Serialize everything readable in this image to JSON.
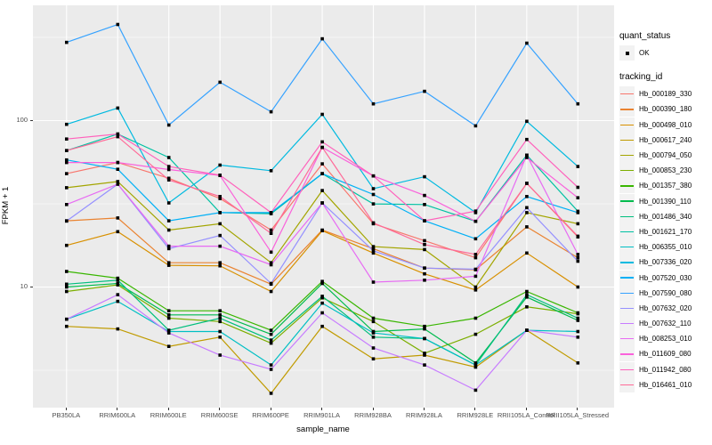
{
  "figure": {
    "y_axis": {
      "title": "FPKM + 1",
      "tick_labels": [
        "100",
        "10"
      ]
    },
    "x_axis": {
      "title": "sample_name"
    },
    "legend": {
      "quant_status_title": "quant_status",
      "quant_status_item": "OK",
      "tracking_id_title": "tracking_id"
    },
    "colors": {
      "panel_bg": "#EBEBEB",
      "grid": "#FFFFFF",
      "axis_text": "#4D4D4D",
      "point": "#000000",
      "legend_key_bg": "#F2F2F2"
    }
  },
  "chart_data": {
    "type": "line",
    "title": "",
    "xlabel": "sample_name",
    "ylabel": "FPKM + 1",
    "y_scale": "log10",
    "ylim": [
      2,
      420
    ],
    "y_major_ticks": [
      10,
      100
    ],
    "y_minor_ticks": [
      3.162,
      31.62,
      316.2
    ],
    "grid": "on",
    "legend_position": "right",
    "quant_status": "OK",
    "categories": [
      "PB350LA",
      "RRIM600LA",
      "RRIM600LE",
      "RRIM600SE",
      "RRIM600PE",
      "RRIM901LA",
      "RRIM928BA",
      "RRIM928LA",
      "RRIM928LE",
      "RRII105LA_Control",
      "RRII105LA_Stressed"
    ],
    "series": [
      {
        "name": "Hb_000189_330",
        "color": "#F8766D",
        "values": [
          48,
          56,
          45,
          34,
          22,
          55,
          24,
          19,
          15,
          42,
          20
        ]
      },
      {
        "name": "Hb_000390_180",
        "color": "#EA8331",
        "values": [
          25,
          26,
          14,
          14,
          10.4,
          22,
          17,
          13,
          12.7,
          23,
          15
        ]
      },
      {
        "name": "Hb_000498_010",
        "color": "#D89000",
        "values": [
          17.8,
          21.5,
          13.5,
          13.4,
          9.4,
          21.8,
          16,
          12,
          9.6,
          16,
          10
        ]
      },
      {
        "name": "Hb_000617_240",
        "color": "#C09B00",
        "values": [
          5.8,
          5.6,
          4.4,
          5,
          2.3,
          5.8,
          3.7,
          3.9,
          3.3,
          5.5,
          3.5
        ]
      },
      {
        "name": "Hb_000794_050",
        "color": "#A3A500",
        "values": [
          39.5,
          43,
          22,
          24,
          14,
          38,
          17.5,
          16.8,
          10,
          28,
          24
        ]
      },
      {
        "name": "Hb_000853_230",
        "color": "#7CAE00",
        "values": [
          9.4,
          10.3,
          6.5,
          6.2,
          4.6,
          8.6,
          6.2,
          4,
          5.2,
          7.6,
          6.9
        ]
      },
      {
        "name": "Hb_001357_380",
        "color": "#39B600",
        "values": [
          12.4,
          11.3,
          7.2,
          7.2,
          5.5,
          10.8,
          6.5,
          5.8,
          6.5,
          9.4,
          7
        ]
      },
      {
        "name": "Hb_001390_110",
        "color": "#00BB4E",
        "values": [
          10,
          10.5,
          6.8,
          6.8,
          5.2,
          10.5,
          5.4,
          5.6,
          3.5,
          8.7,
          6.3
        ]
      },
      {
        "name": "Hb_001486_340",
        "color": "#00BF7D",
        "values": [
          10.4,
          11,
          5.5,
          6.5,
          4.8,
          8.8,
          5,
          4.9,
          3.4,
          9,
          6.5
        ]
      },
      {
        "name": "Hb_001621_170",
        "color": "#00C1A3",
        "values": [
          66,
          83,
          60,
          28,
          27.6,
          48,
          31.6,
          31.3,
          24.8,
          62,
          28.5
        ]
      },
      {
        "name": "Hb_006355_010",
        "color": "#00BFC4",
        "values": [
          6.4,
          8.2,
          5.4,
          5.4,
          3.4,
          8,
          5.3,
          4.9,
          3.4,
          5.5,
          5.4
        ]
      },
      {
        "name": "Hb_007336_020",
        "color": "#00BAE0",
        "values": [
          95,
          119,
          32,
          54,
          50,
          109,
          39,
          46,
          28,
          99,
          53
        ]
      },
      {
        "name": "Hb_007520_030",
        "color": "#00B0F6",
        "values": [
          58,
          51,
          25,
          28,
          28,
          48,
          36,
          25,
          19.5,
          35,
          28
        ]
      },
      {
        "name": "Hb_007590_080",
        "color": "#35A2FF",
        "values": [
          295,
          378,
          94,
          170,
          113,
          310,
          126,
          150,
          93,
          292,
          126
        ]
      },
      {
        "name": "Hb_007632_020",
        "color": "#9590FF",
        "values": [
          24.9,
          41.5,
          17,
          20.4,
          10.5,
          32,
          16.5,
          13,
          12.8,
          30,
          14.3
        ]
      },
      {
        "name": "Hb_007632_110",
        "color": "#C77CFF",
        "values": [
          6.4,
          9,
          5.3,
          3.9,
          3.2,
          7,
          4.3,
          3.4,
          2.4,
          5.5,
          5
        ]
      },
      {
        "name": "Hb_008253_010",
        "color": "#E76BF3",
        "values": [
          31.3,
          41.5,
          17.6,
          17.6,
          13.6,
          32,
          10.7,
          11,
          11.6,
          62,
          15.7
        ]
      },
      {
        "name": "Hb_011609_080",
        "color": "#FA62DB",
        "values": [
          56,
          56,
          50.8,
          46.8,
          16.2,
          69,
          46.5,
          35.5,
          24.8,
          60,
          34.4
        ]
      },
      {
        "name": "Hb_011942_080",
        "color": "#FF62BC",
        "values": [
          77.5,
          83,
          53,
          47,
          28,
          74.5,
          46.5,
          25,
          28.6,
          77,
          39.7
        ]
      },
      {
        "name": "Hb_016461_010",
        "color": "#FF6A98",
        "values": [
          66,
          80,
          44,
          35,
          21,
          69,
          24.3,
          18,
          15.7,
          42,
          20.2
        ]
      }
    ]
  }
}
